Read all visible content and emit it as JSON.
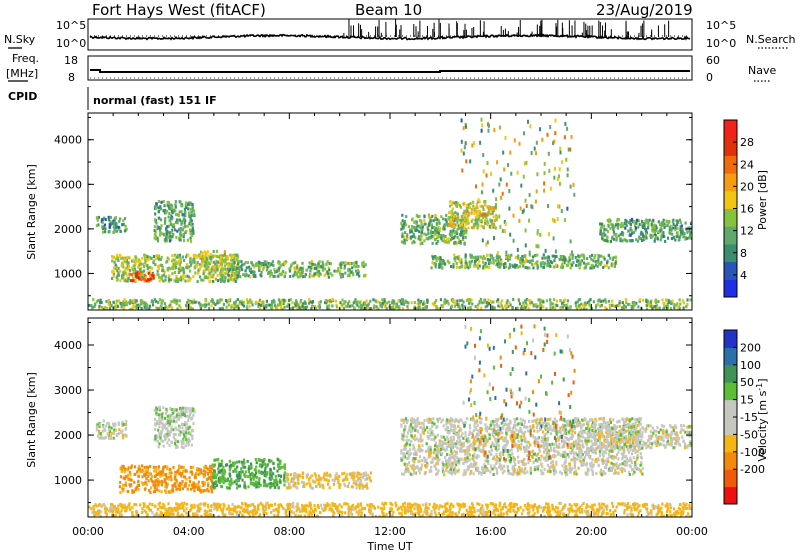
{
  "header": {
    "station": "Fort Hays West (fitACF)",
    "beam": "Beam 10",
    "date": "23/Aug/2019"
  },
  "strip_labels": {
    "nsky": "N.Sky",
    "nsearch": "N.Search",
    "freq_top": "Freq.",
    "freq_unit": "[MHz]",
    "nave": "Nave",
    "cpid": "CPID",
    "cpid_value": "normal (fast) 151 IF"
  },
  "noise_axis": {
    "left_ticks": [
      "10^5",
      "10^0"
    ],
    "right_ticks": [
      "10^5",
      "10^0"
    ]
  },
  "freq_axis": {
    "left_ticks": [
      "18",
      "8"
    ],
    "right_ticks": [
      "60",
      "0"
    ]
  },
  "colors": {
    "power_scale": [
      "#1f2fe6",
      "#2855b8",
      "#3a8d6e",
      "#5fa96a",
      "#86c23e",
      "#f2c515",
      "#f59c10",
      "#f16a0c",
      "#e3300c",
      "#f2221a"
    ],
    "velocity_scale": [
      "#ee1010",
      "#f05a0a",
      "#f38a0c",
      "#f5b515",
      "#c7c7c2",
      "#c7c7c2",
      "#5abf37",
      "#3f9356",
      "#2b6fab",
      "#2233c9"
    ]
  },
  "chart_data": [
    {
      "type": "heatmap",
      "name": "power-panel",
      "xlabel": "",
      "ylabel": "Slant Range [km]",
      "xlim": [
        0,
        24
      ],
      "ylim": [
        180,
        4600
      ],
      "y_ticks": [
        1000,
        2000,
        3000,
        4000
      ],
      "colorbar": {
        "label": "Power [dB]",
        "range": [
          0,
          32
        ],
        "ticks": [
          4,
          8,
          12,
          16,
          20,
          24,
          28
        ]
      },
      "regions": [
        {
          "x": [
            0.3,
            1.5
          ],
          "y": [
            1950,
            2300
          ],
          "value": 10
        },
        {
          "x": [
            2.6,
            4.2
          ],
          "y": [
            1750,
            2650
          ],
          "value": 11
        },
        {
          "x": [
            0.9,
            6.0
          ],
          "y": [
            850,
            1450
          ],
          "value": 14
        },
        {
          "x": [
            1.6,
            2.6
          ],
          "y": [
            860,
            1060
          ],
          "value": 27
        },
        {
          "x": [
            4.4,
            5.4
          ],
          "y": [
            1100,
            1550
          ],
          "value": 15
        },
        {
          "x": [
            5.5,
            11.0
          ],
          "y": [
            950,
            1300
          ],
          "value": 12
        },
        {
          "x": [
            0.0,
            24.0
          ],
          "y": [
            230,
            450
          ],
          "value": 13
        },
        {
          "x": [
            12.4,
            15.0
          ],
          "y": [
            1700,
            2350
          ],
          "value": 12
        },
        {
          "x": [
            14.3,
            16.2
          ],
          "y": [
            2050,
            2650
          ],
          "value": 16
        },
        {
          "x": [
            13.6,
            21.0
          ],
          "y": [
            1150,
            1450
          ],
          "value": 12
        },
        {
          "x": [
            20.3,
            24.0
          ],
          "y": [
            1750,
            2250
          ],
          "value": 11
        }
      ]
    },
    {
      "type": "heatmap",
      "name": "velocity-panel",
      "xlabel": "Time UT",
      "ylabel": "Slant Range [km]",
      "xlim": [
        0,
        24
      ],
      "ylim": [
        180,
        4600
      ],
      "y_ticks": [
        1000,
        2000,
        3000,
        4000
      ],
      "x_ticks": [
        "00:00",
        "04:00",
        "08:00",
        "12:00",
        "16:00",
        "20:00",
        "00:00"
      ],
      "colorbar": {
        "label": "Velocity [m s^-1]",
        "ticks": [
          200,
          100,
          50,
          15,
          -15,
          -50,
          -100,
          -200
        ]
      },
      "regions": [
        {
          "x": [
            0.3,
            1.5
          ],
          "y": [
            1950,
            2350
          ],
          "value": 0
        },
        {
          "x": [
            2.6,
            4.2
          ],
          "y": [
            1750,
            2650
          ],
          "value": 5
        },
        {
          "x": [
            1.2,
            4.9
          ],
          "y": [
            750,
            1350
          ],
          "value": -60
        },
        {
          "x": [
            4.9,
            7.8
          ],
          "y": [
            850,
            1500
          ],
          "value": 45
        },
        {
          "x": [
            7.8,
            11.2
          ],
          "y": [
            850,
            1200
          ],
          "value": -20
        },
        {
          "x": [
            0.0,
            24.0
          ],
          "y": [
            220,
            520
          ],
          "value": -30
        },
        {
          "x": [
            12.4,
            22.0
          ],
          "y": [
            1150,
            2400
          ],
          "value": 0
        },
        {
          "x": [
            20.0,
            24.0
          ],
          "y": [
            1750,
            2250
          ],
          "value": 0
        }
      ]
    }
  ]
}
